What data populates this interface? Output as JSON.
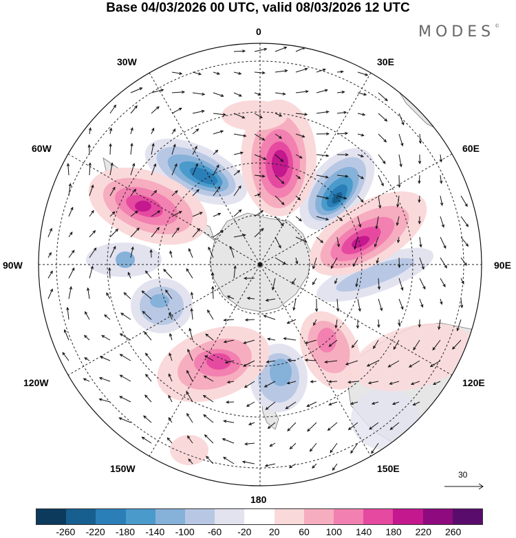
{
  "title": "Base 04/03/2026 00 UTC, valid 08/03/2026 12 UTC",
  "brand": {
    "name": "MODES",
    "mark": "©"
  },
  "longitude_labels": {
    "n": "0",
    "ne30": "30E",
    "ne60": "60E",
    "e90": "90E",
    "se120": "120E",
    "se150": "150E",
    "s180": "180",
    "sw150": "150W",
    "sw120": "120W",
    "w90": "90W",
    "nw60": "60W",
    "nw30": "30W"
  },
  "reference_vector": {
    "value": "30"
  },
  "colorbar": {
    "colors": [
      "#0b3a5c",
      "#175f8e",
      "#2a7fb8",
      "#4a9acb",
      "#86b1d9",
      "#b8c8e4",
      "#e3e3f0",
      "#ffffff",
      "#fad9da",
      "#f6adbf",
      "#f280b0",
      "#e64aa0",
      "#c3188e",
      "#8e0a7e",
      "#5a0c6c"
    ],
    "ticks": [
      "-260",
      "-220",
      "-180",
      "-140",
      "-100",
      "-60",
      "-20",
      "20",
      "60",
      "100",
      "140",
      "180",
      "220",
      "260"
    ]
  }
}
